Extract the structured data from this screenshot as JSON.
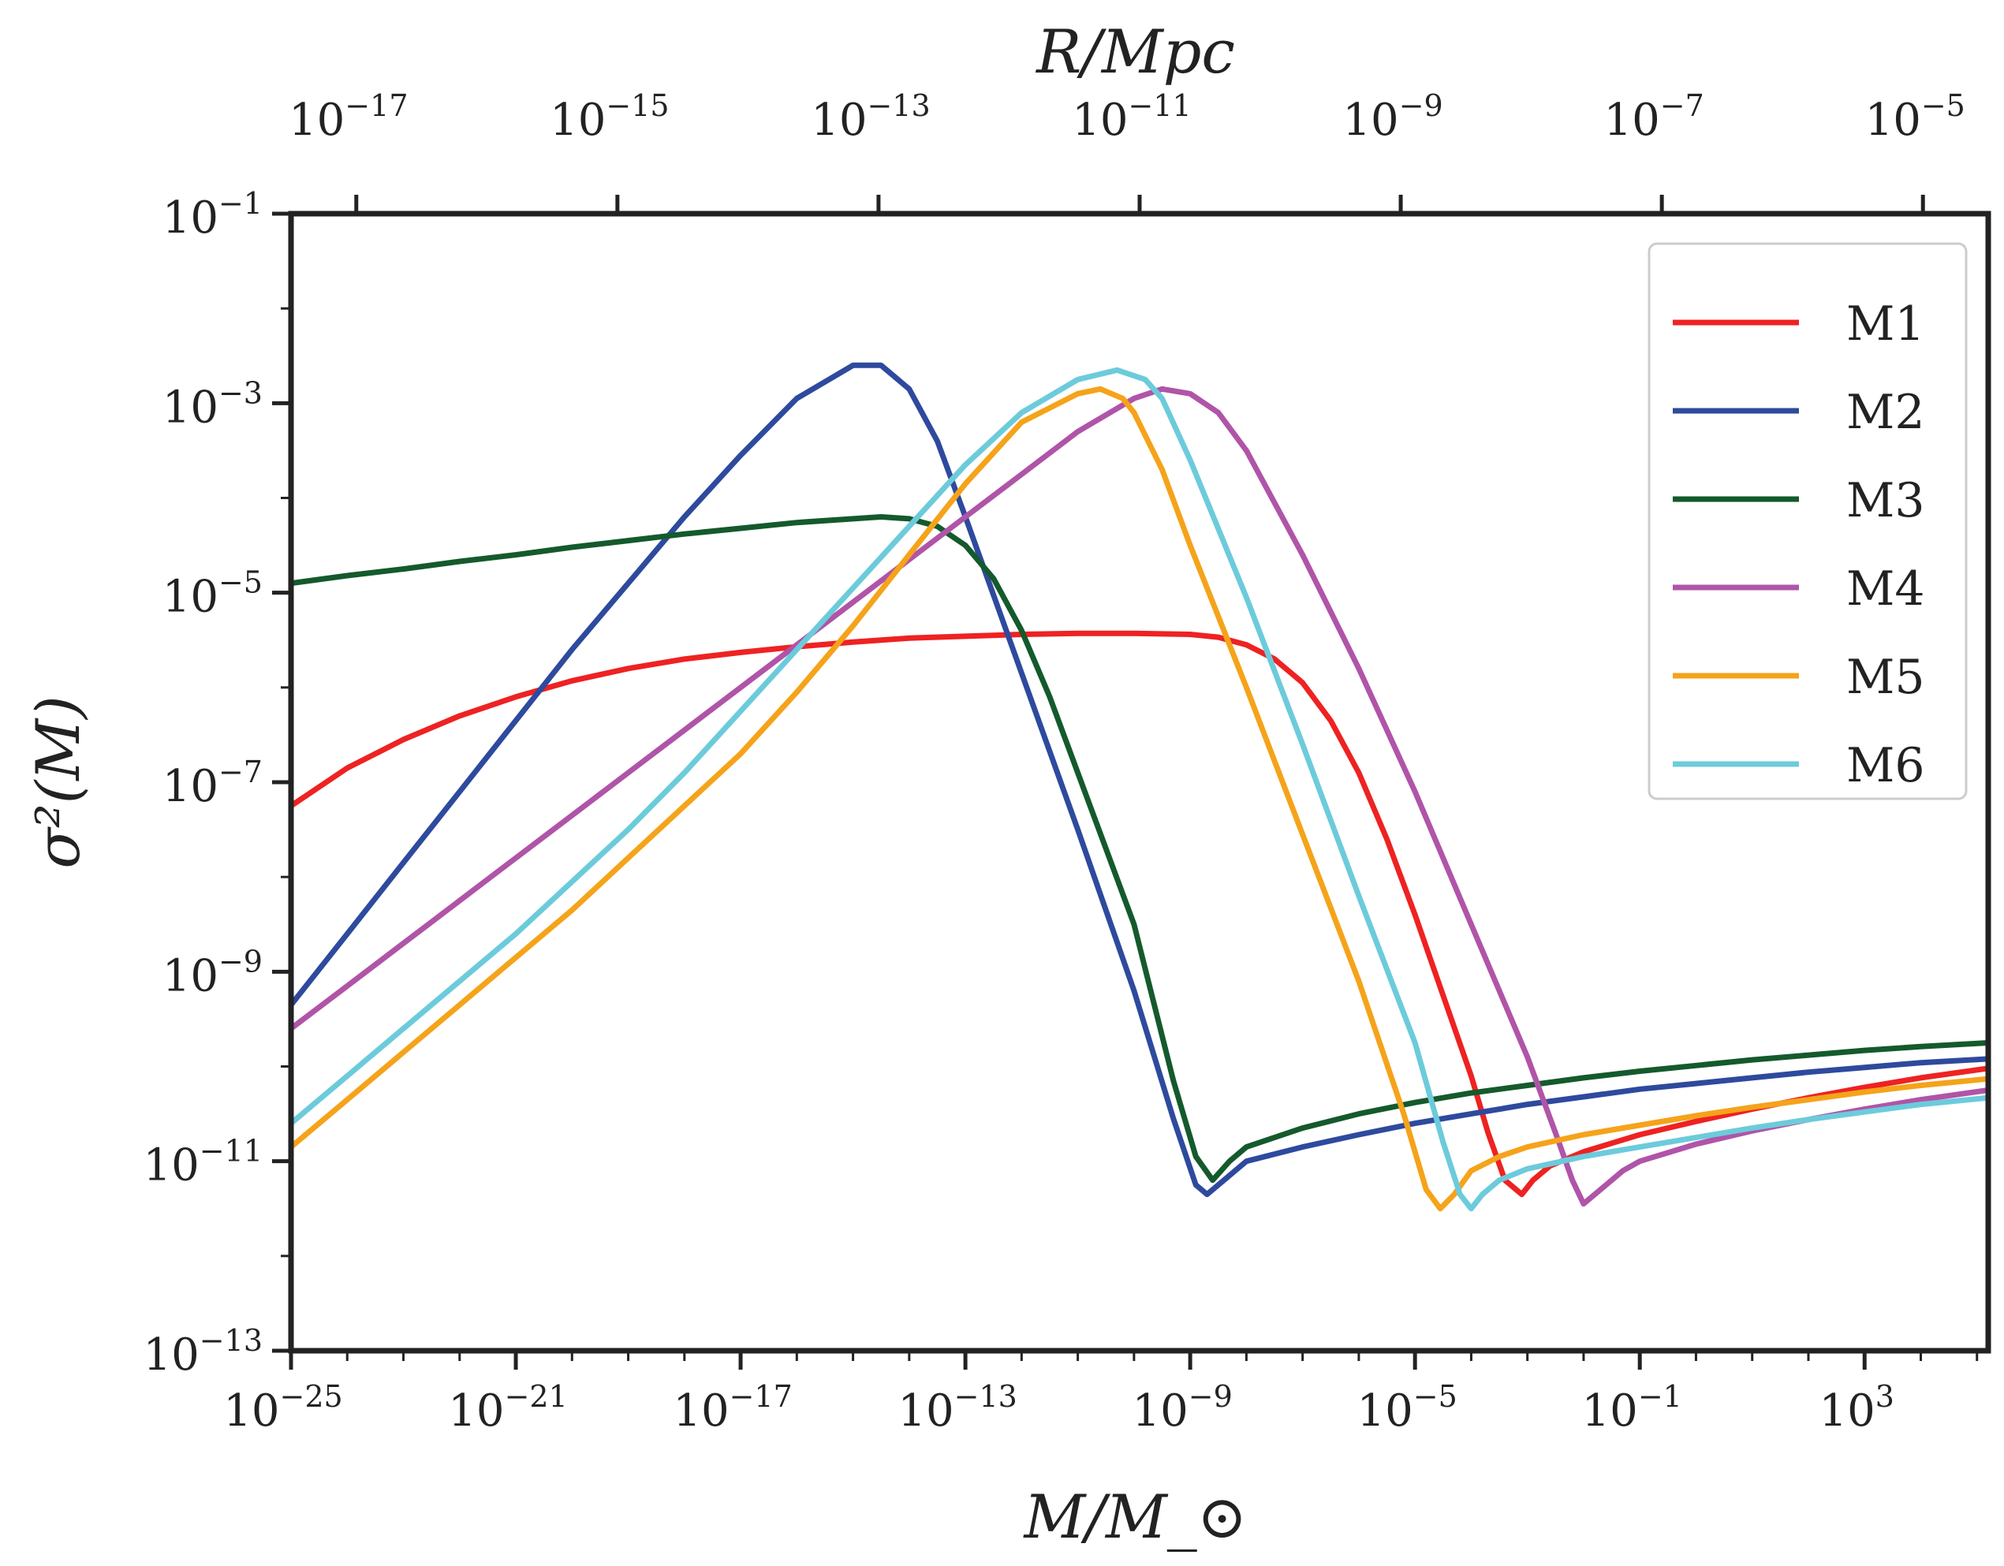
{
  "chart_data": {
    "type": "line",
    "title": "",
    "xlabel": "M/M_⊙",
    "ylabel": "σ²(M)",
    "top_xlabel": "R/Mpc",
    "xscale": "log",
    "yscale": "log",
    "xlim_log10": [
      -25,
      5.2
    ],
    "ylim_log10": [
      -13,
      -1
    ],
    "top_xlim_log10": [
      -17.5,
      -4.5
    ],
    "grid": false,
    "legend_position": "top-right",
    "x_ticks": [
      {
        "base": "10",
        "exp": "−25",
        "log": -25
      },
      {
        "base": "10",
        "exp": "−21",
        "log": -21
      },
      {
        "base": "10",
        "exp": "−17",
        "log": -17
      },
      {
        "base": "10",
        "exp": "−13",
        "log": -13
      },
      {
        "base": "10",
        "exp": "−9",
        "log": -9
      },
      {
        "base": "10",
        "exp": "−5",
        "log": -5
      },
      {
        "base": "10",
        "exp": "−1",
        "log": -1
      },
      {
        "base": "10",
        "exp": "3",
        "log": 3
      }
    ],
    "y_ticks": [
      {
        "base": "10",
        "exp": "−1",
        "log": -1
      },
      {
        "base": "10",
        "exp": "−3",
        "log": -3
      },
      {
        "base": "10",
        "exp": "−5",
        "log": -5
      },
      {
        "base": "10",
        "exp": "−7",
        "log": -7
      },
      {
        "base": "10",
        "exp": "−9",
        "log": -9
      },
      {
        "base": "10",
        "exp": "−11",
        "log": -11
      },
      {
        "base": "10",
        "exp": "−13",
        "log": -13
      }
    ],
    "top_ticks": [
      {
        "base": "10",
        "exp": "−17",
        "log": -17
      },
      {
        "base": "10",
        "exp": "−15",
        "log": -15
      },
      {
        "base": "10",
        "exp": "−13",
        "log": -13
      },
      {
        "base": "10",
        "exp": "−11",
        "log": -11
      },
      {
        "base": "10",
        "exp": "−9",
        "log": -9
      },
      {
        "base": "10",
        "exp": "−7",
        "log": -7
      },
      {
        "base": "10",
        "exp": "−5",
        "log": -5
      }
    ],
    "series": [
      {
        "name": "M1",
        "color": "#ee2222",
        "points": [
          [
            -25,
            -7.25
          ],
          [
            -24,
            -6.85
          ],
          [
            -23,
            -6.55
          ],
          [
            -22,
            -6.3
          ],
          [
            -21,
            -6.1
          ],
          [
            -20,
            -5.93
          ],
          [
            -19,
            -5.8
          ],
          [
            -18,
            -5.7
          ],
          [
            -17,
            -5.63
          ],
          [
            -16,
            -5.57
          ],
          [
            -15,
            -5.52
          ],
          [
            -14,
            -5.48
          ],
          [
            -13,
            -5.46
          ],
          [
            -12,
            -5.44
          ],
          [
            -11,
            -5.43
          ],
          [
            -10,
            -5.43
          ],
          [
            -9,
            -5.44
          ],
          [
            -8.5,
            -5.47
          ],
          [
            -8,
            -5.55
          ],
          [
            -7.5,
            -5.7
          ],
          [
            -7,
            -5.95
          ],
          [
            -6.5,
            -6.35
          ],
          [
            -6,
            -6.9
          ],
          [
            -5.5,
            -7.6
          ],
          [
            -5,
            -8.4
          ],
          [
            -4.5,
            -9.25
          ],
          [
            -4,
            -10.1
          ],
          [
            -3.7,
            -10.7
          ],
          [
            -3.4,
            -11.2
          ],
          [
            -3.1,
            -11.35
          ],
          [
            -2.9,
            -11.2
          ],
          [
            -2.6,
            -11.05
          ],
          [
            -2,
            -10.9
          ],
          [
            -1,
            -10.72
          ],
          [
            0,
            -10.58
          ],
          [
            1,
            -10.45
          ],
          [
            2,
            -10.33
          ],
          [
            3,
            -10.22
          ],
          [
            4,
            -10.12
          ],
          [
            5.2,
            -10.02
          ]
        ]
      },
      {
        "name": "M2",
        "color": "#2e4a9e",
        "points": [
          [
            -25,
            -9.35
          ],
          [
            -24,
            -8.6
          ],
          [
            -23,
            -7.85
          ],
          [
            -22,
            -7.1
          ],
          [
            -21,
            -6.35
          ],
          [
            -20,
            -5.6
          ],
          [
            -19,
            -4.9
          ],
          [
            -18,
            -4.2
          ],
          [
            -17,
            -3.55
          ],
          [
            -16,
            -2.95
          ],
          [
            -15,
            -2.6
          ],
          [
            -14.5,
            -2.6
          ],
          [
            -14,
            -2.85
          ],
          [
            -13.5,
            -3.4
          ],
          [
            -13,
            -4.2
          ],
          [
            -12,
            -5.85
          ],
          [
            -11,
            -7.5
          ],
          [
            -10,
            -9.2
          ],
          [
            -9.3,
            -10.55
          ],
          [
            -8.9,
            -11.25
          ],
          [
            -8.7,
            -11.35
          ],
          [
            -8.5,
            -11.25
          ],
          [
            -8,
            -11
          ],
          [
            -7,
            -10.85
          ],
          [
            -6,
            -10.72
          ],
          [
            -5,
            -10.6
          ],
          [
            -4,
            -10.5
          ],
          [
            -3,
            -10.4
          ],
          [
            -2,
            -10.32
          ],
          [
            -1,
            -10.24
          ],
          [
            0,
            -10.18
          ],
          [
            1,
            -10.12
          ],
          [
            2,
            -10.06
          ],
          [
            3,
            -10.01
          ],
          [
            4,
            -9.96
          ],
          [
            5.2,
            -9.92
          ]
        ]
      },
      {
        "name": "M3",
        "color": "#145a2c",
        "points": [
          [
            -25,
            -4.9
          ],
          [
            -24,
            -4.82
          ],
          [
            -23,
            -4.75
          ],
          [
            -22,
            -4.67
          ],
          [
            -21,
            -4.6
          ],
          [
            -20,
            -4.52
          ],
          [
            -19,
            -4.45
          ],
          [
            -18,
            -4.38
          ],
          [
            -17,
            -4.32
          ],
          [
            -16,
            -4.26
          ],
          [
            -15,
            -4.22
          ],
          [
            -14.5,
            -4.2
          ],
          [
            -14,
            -4.22
          ],
          [
            -13.5,
            -4.3
          ],
          [
            -13,
            -4.5
          ],
          [
            -12.5,
            -4.85
          ],
          [
            -12,
            -5.4
          ],
          [
            -11.5,
            -6.1
          ],
          [
            -11,
            -6.9
          ],
          [
            -10,
            -8.5
          ],
          [
            -9.3,
            -10.15
          ],
          [
            -8.9,
            -10.95
          ],
          [
            -8.6,
            -11.2
          ],
          [
            -8.3,
            -11
          ],
          [
            -8,
            -10.85
          ],
          [
            -7,
            -10.65
          ],
          [
            -6,
            -10.5
          ],
          [
            -5,
            -10.38
          ],
          [
            -4,
            -10.28
          ],
          [
            -3,
            -10.2
          ],
          [
            -2,
            -10.12
          ],
          [
            -1,
            -10.05
          ],
          [
            0,
            -9.99
          ],
          [
            1,
            -9.93
          ],
          [
            2,
            -9.88
          ],
          [
            3,
            -9.83
          ],
          [
            4,
            -9.79
          ],
          [
            5.2,
            -9.75
          ]
        ]
      },
      {
        "name": "M4",
        "color": "#b054a8",
        "points": [
          [
            -25,
            -9.6
          ],
          [
            -24,
            -9.15
          ],
          [
            -23,
            -8.7
          ],
          [
            -22,
            -8.25
          ],
          [
            -21,
            -7.8
          ],
          [
            -20,
            -7.35
          ],
          [
            -19,
            -6.9
          ],
          [
            -18,
            -6.45
          ],
          [
            -17,
            -6.0
          ],
          [
            -16,
            -5.55
          ],
          [
            -15,
            -5.1
          ],
          [
            -14,
            -4.65
          ],
          [
            -13,
            -4.2
          ],
          [
            -12,
            -3.75
          ],
          [
            -11,
            -3.3
          ],
          [
            -10,
            -2.95
          ],
          [
            -9.5,
            -2.85
          ],
          [
            -9,
            -2.9
          ],
          [
            -8.5,
            -3.1
          ],
          [
            -8,
            -3.5
          ],
          [
            -7,
            -4.6
          ],
          [
            -6,
            -5.8
          ],
          [
            -5,
            -7.1
          ],
          [
            -4,
            -8.5
          ],
          [
            -3,
            -9.9
          ],
          [
            -2.5,
            -10.7
          ],
          [
            -2.2,
            -11.2
          ],
          [
            -2,
            -11.45
          ],
          [
            -1.7,
            -11.3
          ],
          [
            -1.3,
            -11.1
          ],
          [
            -1,
            -11.0
          ],
          [
            0,
            -10.82
          ],
          [
            1,
            -10.68
          ],
          [
            2,
            -10.56
          ],
          [
            3,
            -10.45
          ],
          [
            4,
            -10.35
          ],
          [
            5.2,
            -10.25
          ]
        ]
      },
      {
        "name": "M5",
        "color": "#f5a31a",
        "points": [
          [
            -25,
            -10.85
          ],
          [
            -24,
            -10.35
          ],
          [
            -23,
            -9.85
          ],
          [
            -22,
            -9.35
          ],
          [
            -21,
            -8.85
          ],
          [
            -20,
            -8.35
          ],
          [
            -19,
            -7.8
          ],
          [
            -18,
            -7.25
          ],
          [
            -17,
            -6.7
          ],
          [
            -16,
            -6.05
          ],
          [
            -15,
            -5.35
          ],
          [
            -14,
            -4.6
          ],
          [
            -13,
            -3.85
          ],
          [
            -12,
            -3.2
          ],
          [
            -11,
            -2.9
          ],
          [
            -10.6,
            -2.85
          ],
          [
            -10.2,
            -2.95
          ],
          [
            -10,
            -3.1
          ],
          [
            -9.5,
            -3.7
          ],
          [
            -9,
            -4.5
          ],
          [
            -8,
            -6.0
          ],
          [
            -7,
            -7.55
          ],
          [
            -6,
            -9.1
          ],
          [
            -5.2,
            -10.5
          ],
          [
            -4.8,
            -11.3
          ],
          [
            -4.55,
            -11.5
          ],
          [
            -4.3,
            -11.35
          ],
          [
            -4,
            -11.1
          ],
          [
            -3.5,
            -10.95
          ],
          [
            -3,
            -10.85
          ],
          [
            -2,
            -10.72
          ],
          [
            -1,
            -10.62
          ],
          [
            0,
            -10.52
          ],
          [
            1,
            -10.43
          ],
          [
            2,
            -10.35
          ],
          [
            3,
            -10.27
          ],
          [
            4,
            -10.2
          ],
          [
            5.2,
            -10.13
          ]
        ]
      },
      {
        "name": "M6",
        "color": "#6ccbdb",
        "points": [
          [
            -25,
            -10.6
          ],
          [
            -24,
            -10.1
          ],
          [
            -23,
            -9.6
          ],
          [
            -22,
            -9.1
          ],
          [
            -21,
            -8.6
          ],
          [
            -20,
            -8.05
          ],
          [
            -19,
            -7.5
          ],
          [
            -18,
            -6.9
          ],
          [
            -17,
            -6.25
          ],
          [
            -16,
            -5.6
          ],
          [
            -15,
            -4.95
          ],
          [
            -14,
            -4.3
          ],
          [
            -13,
            -3.65
          ],
          [
            -12,
            -3.1
          ],
          [
            -11,
            -2.75
          ],
          [
            -10.3,
            -2.65
          ],
          [
            -9.8,
            -2.75
          ],
          [
            -9.5,
            -2.95
          ],
          [
            -9,
            -3.6
          ],
          [
            -8,
            -5.05
          ],
          [
            -7,
            -6.6
          ],
          [
            -6,
            -8.2
          ],
          [
            -5,
            -9.75
          ],
          [
            -4.5,
            -10.8
          ],
          [
            -4.2,
            -11.35
          ],
          [
            -4,
            -11.5
          ],
          [
            -3.8,
            -11.35
          ],
          [
            -3.5,
            -11.2
          ],
          [
            -3,
            -11.08
          ],
          [
            -2,
            -10.95
          ],
          [
            -1,
            -10.85
          ],
          [
            0,
            -10.75
          ],
          [
            1,
            -10.65
          ],
          [
            2,
            -10.56
          ],
          [
            3,
            -10.48
          ],
          [
            4,
            -10.4
          ],
          [
            5.2,
            -10.33
          ]
        ]
      }
    ]
  }
}
